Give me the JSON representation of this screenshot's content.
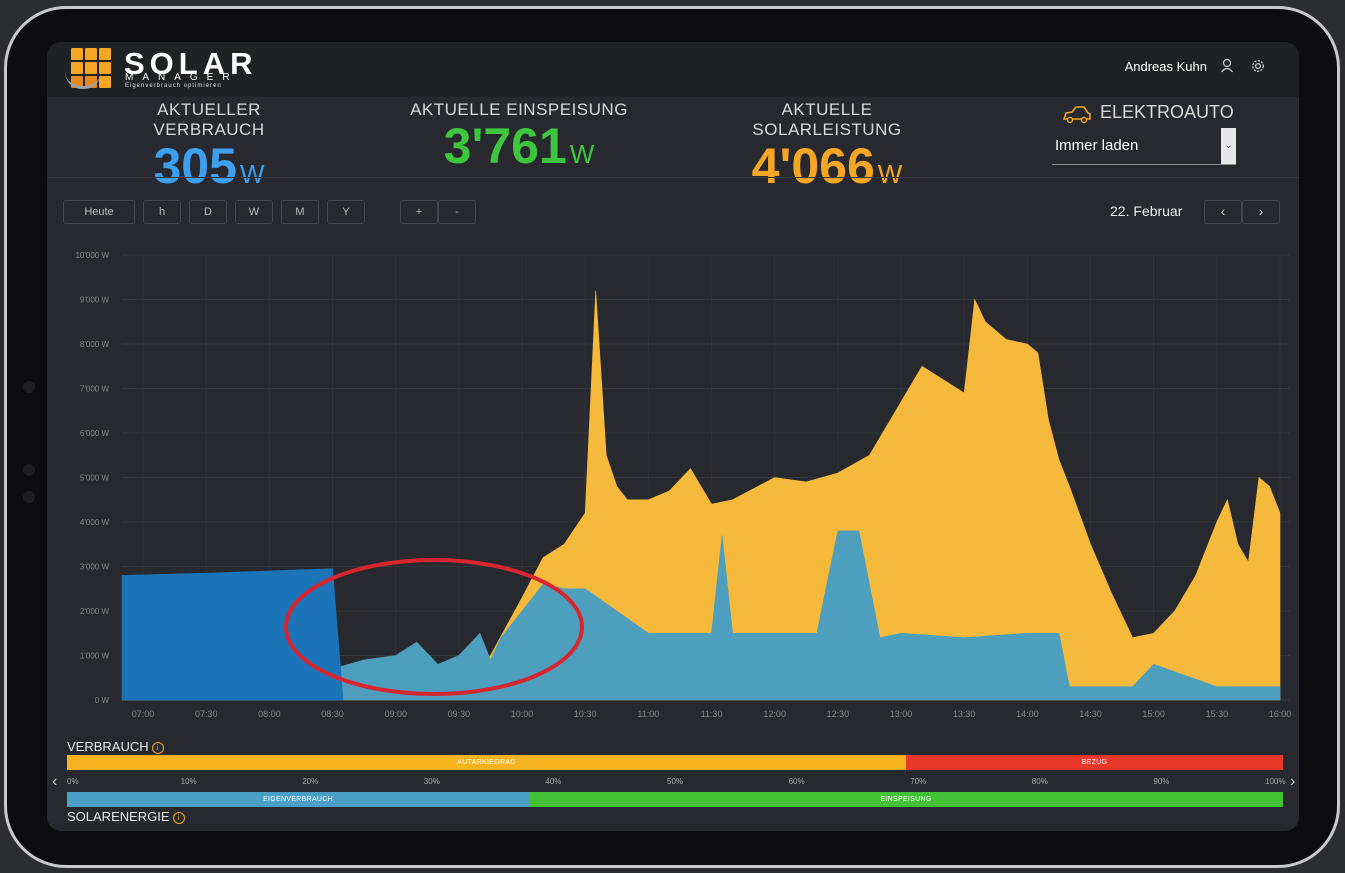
{
  "header": {
    "brand_title": "SOLAR",
    "brand_sub": "MANAGER",
    "brand_tag": "Eigenverbrauch optimieren",
    "user_name": "Andreas Kuhn",
    "user_icon": "user-icon",
    "settings_icon": "gear-icon"
  },
  "stats": {
    "consumption": {
      "label": "AKTUELLER VERBRAUCH",
      "value": "305",
      "unit": "W",
      "color": "#3d9ff0"
    },
    "feed_in": {
      "label": "AKTUELLE EINSPEISUNG",
      "value": "3'761",
      "unit": "W",
      "color": "#3ec63e"
    },
    "solar": {
      "label": "AKTUELLE SOLARLEISTUNG",
      "value": "4'066",
      "unit": "W",
      "color": "#f5a623"
    }
  },
  "ev": {
    "title": "ELEKTROAUTO",
    "icon": "car-icon",
    "mode": "Immer laden"
  },
  "toolbar": {
    "buttons": [
      "Heute",
      "h",
      "D",
      "W",
      "M",
      "Y"
    ],
    "zoom": [
      "+",
      "-"
    ],
    "date": "22. Februar",
    "prev": "‹",
    "next": "›"
  },
  "chart_data": {
    "type": "area",
    "y_ticks": [
      "0 W",
      "1'000 W",
      "2'000 W",
      "3'000 W",
      "4'000 W",
      "5'000 W",
      "6'000 W",
      "7'000 W",
      "8'000 W",
      "9'000 W",
      "10'000 W"
    ],
    "ylim": [
      0,
      10000
    ],
    "x_ticks": [
      "07:00",
      "07:30",
      "08:00",
      "08:30",
      "09:00",
      "09:30",
      "10:00",
      "10:30",
      "11:00",
      "11:30",
      "12:00",
      "12:30",
      "13:00",
      "13:30",
      "14:00",
      "14:30",
      "15:00",
      "15:30",
      "16:00"
    ],
    "xlim": [
      "06:50",
      "16:00"
    ],
    "series": [
      {
        "color": "#f5b93b",
        "x": [
          "06:50",
          "08:30",
          "09:00",
          "09:30",
          "09:45",
          "10:00",
          "10:10",
          "10:20",
          "10:30",
          "10:35",
          "10:40",
          "10:45",
          "10:50",
          "11:00",
          "11:10",
          "11:20",
          "11:30",
          "11:40",
          "12:00",
          "12:15",
          "12:30",
          "12:45",
          "13:00",
          "13:10",
          "13:20",
          "13:30",
          "13:35",
          "13:40",
          "13:50",
          "14:00",
          "14:05",
          "14:10",
          "14:15",
          "14:20",
          "14:30",
          "14:40",
          "14:50",
          "15:00",
          "15:10",
          "15:20",
          "15:30",
          "15:35",
          "15:40",
          "15:45",
          "15:50",
          "15:55",
          "16:00"
        ],
        "values": [
          0,
          0,
          0,
          0,
          1000,
          2300,
          3200,
          3500,
          4200,
          9200,
          5500,
          4800,
          4500,
          4500,
          4700,
          5200,
          4400,
          4500,
          5000,
          4900,
          5100,
          5500,
          6700,
          7500,
          7200,
          6900,
          9000,
          8500,
          8100,
          8000,
          7800,
          6300,
          5400,
          4800,
          3500,
          2400,
          1400,
          1500,
          2000,
          2800,
          4000,
          4500,
          3500,
          3100,
          5000,
          4800,
          4200
        ]
      },
      {
        "color": "#4e9fbe",
        "x": [
          "06:50",
          "07:30",
          "07:45",
          "08:00",
          "08:15",
          "08:30",
          "08:45",
          "09:00",
          "09:10",
          "09:20",
          "09:30",
          "09:40",
          "09:45",
          "09:50",
          "10:00",
          "10:10",
          "10:20",
          "10:30",
          "11:00",
          "11:30",
          "11:35",
          "11:40",
          "12:00",
          "12:10",
          "12:20",
          "12:30",
          "12:40",
          "12:50",
          "13:00",
          "13:30",
          "14:00",
          "14:15",
          "14:20",
          "14:30",
          "14:40",
          "14:50",
          "15:00",
          "15:30",
          "15:45",
          "16:00"
        ],
        "values": [
          0,
          0,
          100,
          300,
          500,
          700,
          900,
          1000,
          1300,
          800,
          1000,
          1500,
          900,
          1400,
          2000,
          2600,
          2500,
          2500,
          1500,
          1500,
          3700,
          1500,
          1500,
          1500,
          1500,
          3800,
          3800,
          1400,
          1500,
          1400,
          1500,
          1500,
          300,
          300,
          300,
          300,
          800,
          300,
          300,
          300
        ]
      },
      {
        "color": "#1b73b8",
        "x": [
          "06:50",
          "07:30",
          "08:00",
          "08:30",
          "08:35"
        ],
        "values": [
          2800,
          2850,
          2900,
          2950,
          0
        ]
      }
    ]
  },
  "bars": {
    "top_label": "VERBRAUCH",
    "bottom_label": "SOLARENERGIE",
    "autarkiegrad": {
      "label": "AUTARKIEGRAD",
      "percent": 69,
      "color": "#f5b31f"
    },
    "bezug": {
      "label": "BEZUG",
      "percent": 31,
      "color": "#e9382a"
    },
    "eigenverbrauch": {
      "label": "EIGENVERBRAUCH",
      "percent": 38,
      "color": "#4a9fc6"
    },
    "einspeisung": {
      "label": "EINSPEISUNG",
      "percent": 62,
      "color": "#43c235"
    },
    "percent_ticks": [
      "0%",
      "10%",
      "20%",
      "30%",
      "40%",
      "50%",
      "60%",
      "70%",
      "80%",
      "90%",
      "100%"
    ]
  }
}
